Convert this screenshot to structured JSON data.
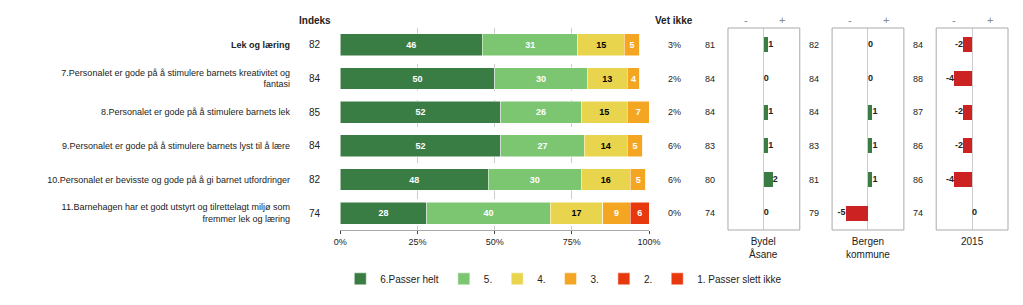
{
  "chart_data": [
    {
      "type": "bar",
      "orientation": "horizontal",
      "stacked": true,
      "data_labels": true,
      "grid": true,
      "legend": "bottom",
      "categories": [
        "Lek og læring",
        "7.Personalet er gode på å stimulere barnets kreativitet og\nfantasi",
        "8.Personalet er gode på å stimulere barnets lek",
        "9.Personalet er gode på å stimulere barnets lyst til å lære",
        "10.Personalet er bevisste og gode på å gi barnet utfordringer",
        "11.Barnehagen har et godt utstyrt og tilrettelagt miljø som\nfremmer lek og læring"
      ],
      "series": [
        {
          "name": "6.Passer helt",
          "color": "#3a7d44",
          "values": [
            46,
            50,
            52,
            52,
            48,
            28
          ]
        },
        {
          "name": "5.",
          "color": "#7dc671",
          "values": [
            31,
            30,
            26,
            27,
            30,
            40
          ]
        },
        {
          "name": "4.",
          "color": "#e8d44d",
          "values": [
            15,
            13,
            15,
            14,
            16,
            17
          ]
        },
        {
          "name": "3.",
          "color": "#f4a623",
          "values": [
            5,
            4,
            7,
            5,
            5,
            9
          ]
        },
        {
          "name": "2.",
          "color": "#e8380d",
          "values": [
            0,
            0,
            0,
            0,
            0,
            6
          ]
        },
        {
          "name": "1. Passer slett ikke",
          "color": "#e8380d",
          "values": [
            null,
            null,
            null,
            null,
            null,
            null
          ]
        }
      ],
      "xlim": [
        0,
        100
      ],
      "xticks": [
        {
          "value": 0,
          "label": "0%"
        },
        {
          "value": 25,
          "label": "25%"
        },
        {
          "value": 50,
          "label": "50%"
        },
        {
          "value": 75,
          "label": "75%"
        },
        {
          "value": 100,
          "label": "100%"
        }
      ],
      "index": {
        "title": "Indeks",
        "values": [
          82,
          84,
          85,
          84,
          82,
          74
        ]
      },
      "vet_ikke": {
        "title": "Vet ikke",
        "values": [
          3,
          2,
          2,
          6,
          6,
          0
        ],
        "value_labels": [
          "3%",
          "2%",
          "2%",
          "6%",
          "6%",
          "0%"
        ]
      }
    },
    {
      "type": "bar",
      "orientation": "horizontal",
      "title": "Bydel\nÅsane",
      "data_labels": true,
      "tick_labels": false,
      "categories": [
        "Lek og læring",
        "7.Personalet er gode på å stimulere barnets kreativitet og\nfantasi",
        "8.Personalet er gode på å stimulere barnets lek",
        "9.Personalet er gode på å stimulere barnets lyst til å lære",
        "10.Personalet er bevisste og gode på å gi barnet utfordringer",
        "11.Barnehagen har et godt utstyrt og tilrettelagt miljø som\nfremmer lek og læring"
      ],
      "values": [
        1,
        0,
        1,
        1,
        2,
        0
      ],
      "colors": [
        "#3a7d44",
        null,
        "#3a7d44",
        "#3a7d44",
        "#3a7d44",
        null
      ],
      "xlim": [
        -8,
        8
      ],
      "index": {
        "values": [
          81,
          84,
          84,
          83,
          80,
          74
        ]
      },
      "annotations": [
        "-",
        "+"
      ]
    },
    {
      "type": "bar",
      "orientation": "horizontal",
      "title": "Bergen\nkommune",
      "data_labels": true,
      "tick_labels": false,
      "categories": [
        "Lek og læring",
        "7.Personalet er gode på å stimulere barnets kreativitet og\nfantasi",
        "8.Personalet er gode på å stimulere barnets lek",
        "9.Personalet er gode på å stimulere barnets lyst til å lære",
        "10.Personalet er bevisste og gode på å gi barnet utfordringer",
        "11.Barnehagen har et godt utstyrt og tilrettelagt miljø som\nfremmer lek og læring"
      ],
      "values": [
        0,
        0,
        1,
        1,
        1,
        -5
      ],
      "colors": [
        null,
        null,
        "#3a7d44",
        "#3a7d44",
        "#3a7d44",
        "#cc2222"
      ],
      "xlim": [
        -8,
        8
      ],
      "index": {
        "values": [
          82,
          84,
          84,
          83,
          81,
          79
        ]
      },
      "annotations": [
        "-",
        "+"
      ]
    },
    {
      "type": "bar",
      "orientation": "horizontal",
      "title": "2015",
      "data_labels": true,
      "tick_labels": false,
      "categories": [
        "Lek og læring",
        "7.Personalet er gode på å stimulere barnets kreativitet og\nfantasi",
        "8.Personalet er gode på å stimulere barnets lek",
        "9.Personalet er gode på å stimulere barnets lyst til å lære",
        "10.Personalet er bevisste og gode på å gi barnet utfordringer",
        "11.Barnehagen har et godt utstyrt og tilrettelagt miljø som\nfremmer lek og læring"
      ],
      "values": [
        -2,
        -4,
        -2,
        -2,
        -4,
        0
      ],
      "colors": [
        "#cc2222",
        "#cc2222",
        "#cc2222",
        "#cc2222",
        "#cc2222",
        null
      ],
      "xlim": [
        -8,
        8
      ],
      "index": {
        "values": [
          84,
          88,
          87,
          86,
          86,
          74
        ]
      },
      "annotations": [
        "-",
        "+"
      ]
    }
  ]
}
